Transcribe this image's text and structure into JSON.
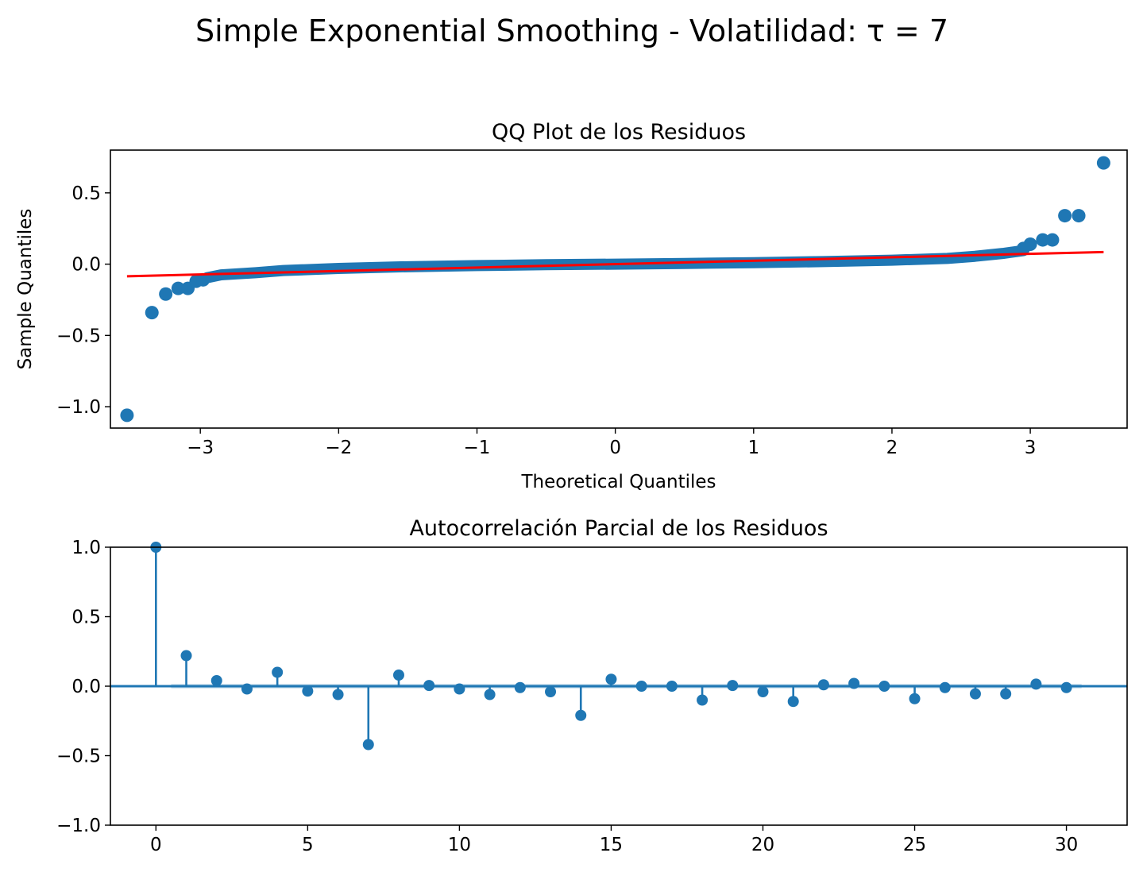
{
  "figure": {
    "suptitle": "Simple Exponential Smoothing - Volatilidad: τ = 7"
  },
  "colors": {
    "points": "#1f77b4",
    "reference_line": "#ff0000",
    "confidence_band": "#1f77b4"
  },
  "chart_data": [
    {
      "type": "scatter",
      "title": "QQ Plot de los Residuos",
      "xlabel": "Theoretical Quantiles",
      "ylabel": "Sample Quantiles",
      "xlim": [
        -3.65,
        3.7
      ],
      "ylim": [
        -1.15,
        0.8
      ],
      "xticks": [
        -3,
        -2,
        -1,
        0,
        1,
        2,
        3
      ],
      "xtick_labels": [
        "−3",
        "−2",
        "−1",
        "0",
        "1",
        "2",
        "3"
      ],
      "yticks": [
        -1.0,
        -0.5,
        0.0,
        0.5
      ],
      "ytick_labels": [
        "−1.0",
        "−0.5",
        "0.0",
        "0.5"
      ],
      "outlier_points": [
        {
          "x": -3.53,
          "y": -1.06
        },
        {
          "x": -3.35,
          "y": -0.34
        },
        {
          "x": -3.25,
          "y": -0.21
        },
        {
          "x": -3.16,
          "y": -0.17
        },
        {
          "x": -3.09,
          "y": -0.17
        },
        {
          "x": -3.03,
          "y": -0.12
        },
        {
          "x": -2.98,
          "y": -0.11
        },
        {
          "x": 2.95,
          "y": 0.11
        },
        {
          "x": 3.0,
          "y": 0.14
        },
        {
          "x": 3.09,
          "y": 0.17
        },
        {
          "x": 3.16,
          "y": 0.17
        },
        {
          "x": 3.25,
          "y": 0.34
        },
        {
          "x": 3.35,
          "y": 0.34
        },
        {
          "x": 3.53,
          "y": 0.71
        }
      ],
      "dense_band_curve": [
        {
          "x": -2.95,
          "y": -0.095
        },
        {
          "x": -2.85,
          "y": -0.075
        },
        {
          "x": -2.6,
          "y": -0.06
        },
        {
          "x": -2.4,
          "y": -0.045
        },
        {
          "x": -2.0,
          "y": -0.03
        },
        {
          "x": -1.5,
          "y": -0.018
        },
        {
          "x": -1.0,
          "y": -0.01
        },
        {
          "x": -0.5,
          "y": -0.004
        },
        {
          "x": 0.0,
          "y": 0.0
        },
        {
          "x": 0.5,
          "y": 0.005
        },
        {
          "x": 1.0,
          "y": 0.01
        },
        {
          "x": 1.5,
          "y": 0.018
        },
        {
          "x": 2.0,
          "y": 0.028
        },
        {
          "x": 2.4,
          "y": 0.04
        },
        {
          "x": 2.6,
          "y": 0.055
        },
        {
          "x": 2.8,
          "y": 0.075
        },
        {
          "x": 2.95,
          "y": 0.095
        }
      ],
      "reference_line": {
        "x": [
          -3.53,
          3.53
        ],
        "y": [
          -0.085,
          0.085
        ]
      }
    },
    {
      "type": "bar",
      "title": "Autocorrelación Parcial de los Residuos",
      "xlim": [
        -1.5,
        32
      ],
      "ylim": [
        -1.0,
        1.0
      ],
      "xticks": [
        0,
        5,
        10,
        15,
        20,
        25,
        30
      ],
      "xtick_labels": [
        "0",
        "5",
        "10",
        "15",
        "20",
        "25",
        "30"
      ],
      "yticks": [
        -1.0,
        -0.5,
        0.0,
        0.5,
        1.0
      ],
      "ytick_labels": [
        "−1.0",
        "−0.5",
        "0.0",
        "0.5",
        "1.0"
      ],
      "lags": [
        0,
        1,
        2,
        3,
        4,
        5,
        6,
        7,
        8,
        9,
        10,
        11,
        12,
        13,
        14,
        15,
        16,
        17,
        18,
        19,
        20,
        21,
        22,
        23,
        24,
        25,
        26,
        27,
        28,
        29,
        30
      ],
      "values": [
        1.0,
        0.22,
        0.04,
        -0.02,
        0.1,
        -0.035,
        -0.06,
        -0.42,
        0.08,
        0.005,
        -0.02,
        -0.06,
        -0.01,
        -0.04,
        -0.21,
        0.05,
        0.0,
        0.0,
        -0.1,
        0.005,
        -0.04,
        -0.11,
        0.01,
        0.02,
        0.0,
        -0.09,
        -0.01,
        -0.055,
        -0.055,
        0.015,
        -0.01
      ],
      "confidence_band": {
        "lag_range": [
          0.5,
          30.5
        ],
        "upper": 0.016,
        "lower": -0.016
      }
    }
  ]
}
